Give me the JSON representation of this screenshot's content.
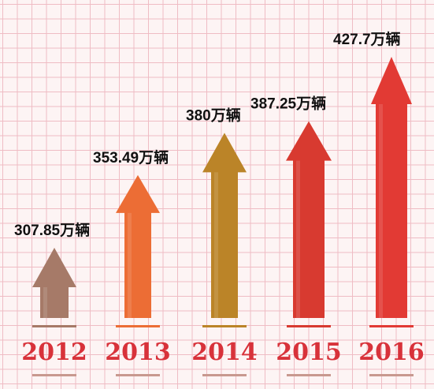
{
  "chart_data": {
    "type": "bar",
    "categories": [
      "2012",
      "2013",
      "2014",
      "2015",
      "2016"
    ],
    "values": [
      307.85,
      353.49,
      380,
      387.25,
      427.7
    ],
    "data_labels": [
      "307.85万辆",
      "353.49万辆",
      "380万辆",
      "387.25万辆",
      "427.7万辆"
    ],
    "unit": "万辆",
    "title": "",
    "xlabel": "",
    "ylabel": "",
    "grid": true,
    "bar_style": "arrow",
    "colors": [
      "#a67a68",
      "#ec6d35",
      "#bb8428",
      "#d83a30",
      "#e23a34"
    ],
    "year_color": "#d8323a",
    "grid_color": "#efbcc4"
  }
}
